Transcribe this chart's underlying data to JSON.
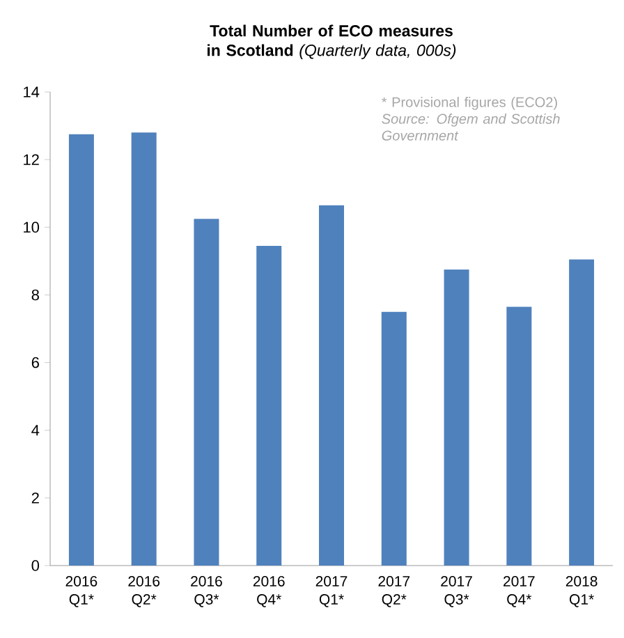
{
  "chart_data": {
    "type": "bar",
    "title": "**Total Number of ECO measures in Scotland** *(Quarterly data, 000s)*",
    "categories": [
      "2016 Q1*",
      "2016 Q2*",
      "2016 Q3*",
      "2016 Q4*",
      "2017 Q1*",
      "2017 Q2*",
      "2017 Q3*",
      "2017 Q4*",
      "2018 Q1*"
    ],
    "values": [
      12.75,
      12.8,
      10.25,
      9.45,
      10.65,
      7.5,
      8.75,
      7.65,
      9.05
    ],
    "color": "#4f81bd",
    "ylim": [
      0,
      14
    ],
    "yticks": [
      0,
      2,
      4,
      6,
      8,
      10,
      12,
      14
    ],
    "grid": false,
    "annotations": [
      "* Provisional figures (ECO2)",
      "Source: Ofgem and Scottish Government"
    ]
  }
}
